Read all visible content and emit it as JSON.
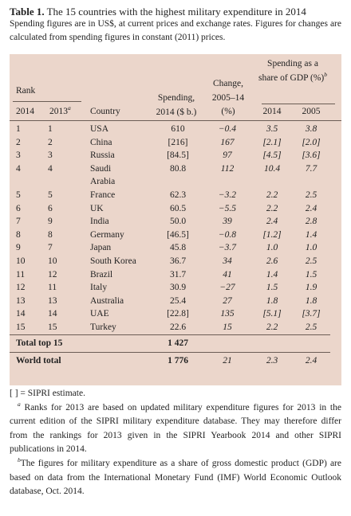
{
  "title": {
    "label": "Table 1.",
    "text": "The 15 countries with the highest military expenditure in 2014"
  },
  "subtitle": "Spending figures are in US$, at current prices and exchange rates. Figures for changes are calculated from spending figures in constant (2011) prices.",
  "table": {
    "header": {
      "rank": "Rank",
      "rank_2014": "2014",
      "rank_2013": "2013",
      "rank_2013_note": "a",
      "country": "Country",
      "spending": "Spending, 2014 ($ b.)",
      "change": "Change, 2005–14 (%)",
      "gdp_share": "Spending as a share of GDP (%)",
      "gdp_share_note": "b",
      "gdp_2014": "2014",
      "gdp_2005": "2005"
    },
    "rows": [
      [
        "1",
        "1",
        "USA",
        "610",
        "−0.4",
        "3.5",
        "3.8"
      ],
      [
        "2",
        "2",
        "China",
        "[216]",
        "167",
        "[2.1]",
        "[2.0]"
      ],
      [
        "3",
        "3",
        "Russia",
        "[84.5]",
        "97",
        "[4.5]",
        "[3.6]"
      ],
      [
        "4",
        "4",
        "Saudi Arabia",
        "80.8",
        "112",
        "10.4",
        "7.7"
      ],
      [
        "5",
        "5",
        "France",
        "62.3",
        "−3.2",
        "2.2",
        "2.5"
      ],
      [
        "6",
        "6",
        "UK",
        "60.5",
        "−5.5",
        "2.2",
        "2.4"
      ],
      [
        "7",
        "9",
        "India",
        "50.0",
        "39",
        "2.4",
        "2.8"
      ],
      [
        "8",
        "8",
        "Germany",
        "[46.5]",
        "−0.8",
        "[1.2]",
        "1.4"
      ],
      [
        "9",
        "7",
        "Japan",
        "45.8",
        "−3.7",
        "1.0",
        "1.0"
      ],
      [
        "10",
        "10",
        "South Korea",
        "36.7",
        "34",
        "2.6",
        "2.5"
      ],
      [
        "11",
        "12",
        "Brazil",
        "31.7",
        "41",
        "1.4",
        "1.5"
      ],
      [
        "12",
        "11",
        "Italy",
        "30.9",
        "−27",
        "1.5",
        "1.9"
      ],
      [
        "13",
        "13",
        "Australia",
        "25.4",
        "27",
        "1.8",
        "1.8"
      ],
      [
        "14",
        "14",
        "UAE",
        "[22.8]",
        "135",
        "[5.1]",
        "[3.7]"
      ],
      [
        "15",
        "15",
        "Turkey",
        "22.6",
        "15",
        "2.2",
        "2.5"
      ]
    ],
    "totals": [
      {
        "label": "Total top 15",
        "spending": "1 427"
      },
      {
        "label": "World total",
        "spending": "1 776",
        "change": "21",
        "gdp_2014": "2.3",
        "gdp_2005": "2.4"
      }
    ]
  },
  "notes": {
    "estimate": "[ ] = SIPRI estimate.",
    "a": {
      "marker": "a",
      "text": "Ranks for 2013 are based on updated military expenditure figures for 2013 in the current edition of the SIPRI military expenditure database. They may therefore differ from the rankings for 2013 given in the SIPRI Yearbook 2014 and other SIPRI publications in 2014."
    },
    "b": {
      "marker": "b",
      "text": "The figures for military expenditure as a share of gross domestic product (GDP) are based on data from the International Monetary Fund (IMF) World Economic Outlook database, Oct. 2014."
    }
  }
}
